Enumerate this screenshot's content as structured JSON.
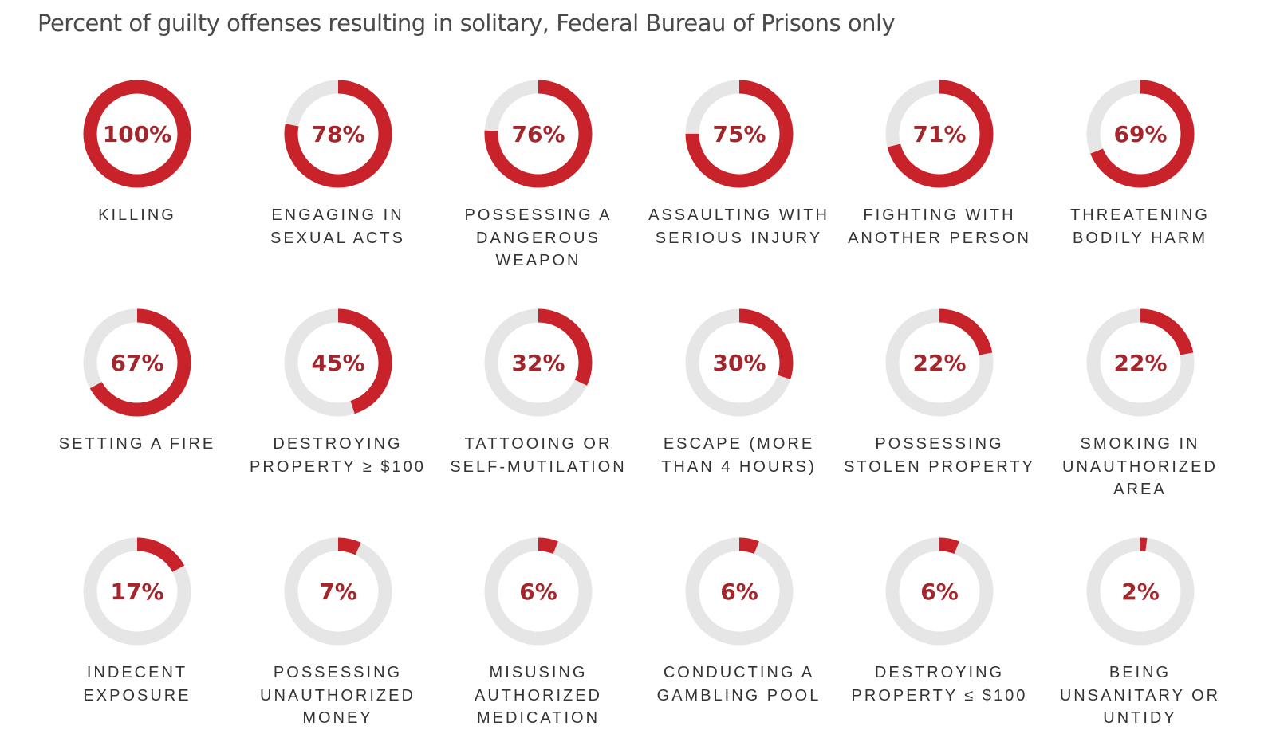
{
  "chart_data": {
    "type": "donut-grid",
    "title": "Percent of guilty offenses resulting in solitary, Federal Bureau of Prisons only",
    "colors": {
      "fill": "#c8232b",
      "track": "#e6e6e6",
      "value_text": "#a3262c",
      "label_text": "#333333"
    },
    "items": [
      {
        "label": "KILLING",
        "value": 100,
        "value_label": "100%"
      },
      {
        "label": "ENGAGING IN SEXUAL ACTS",
        "value": 78,
        "value_label": "78%"
      },
      {
        "label": "POSSESSING A DANGEROUS WEAPON",
        "value": 76,
        "value_label": "76%"
      },
      {
        "label": "ASSAULTING WITH SERIOUS INJURY",
        "value": 75,
        "value_label": "75%"
      },
      {
        "label": "FIGHTING WITH ANOTHER PERSON",
        "value": 71,
        "value_label": "71%"
      },
      {
        "label": "THREATENING BODILY HARM",
        "value": 69,
        "value_label": "69%"
      },
      {
        "label": "SETTING A FIRE",
        "value": 67,
        "value_label": "67%"
      },
      {
        "label": "DESTROYING PROPERTY ≥ $100",
        "value": 45,
        "value_label": "45%"
      },
      {
        "label": "TATTOOING OR SELF-MUTILATION",
        "value": 32,
        "value_label": "32%"
      },
      {
        "label": "ESCAPE (MORE THAN 4 HOURS)",
        "value": 30,
        "value_label": "30%"
      },
      {
        "label": "POSSESSING STOLEN PROPERTY",
        "value": 22,
        "value_label": "22%"
      },
      {
        "label": "SMOKING IN UNAUTHORIZED AREA",
        "value": 22,
        "value_label": "22%"
      },
      {
        "label": "INDECENT EXPOSURE",
        "value": 17,
        "value_label": "17%"
      },
      {
        "label": "POSSESSING UNAUTHORIZED MONEY",
        "value": 7,
        "value_label": "7%"
      },
      {
        "label": "MISUSING AUTHORIZED MEDICATION",
        "value": 6,
        "value_label": "6%"
      },
      {
        "label": "CONDUCTING A GAMBLING POOL",
        "value": 6,
        "value_label": "6%"
      },
      {
        "label": "DESTROYING PROPERTY ≤ $100",
        "value": 6,
        "value_label": "6%"
      },
      {
        "label": "BEING UNSANITARY OR UNTIDY",
        "value": 2,
        "value_label": "2%"
      }
    ]
  }
}
